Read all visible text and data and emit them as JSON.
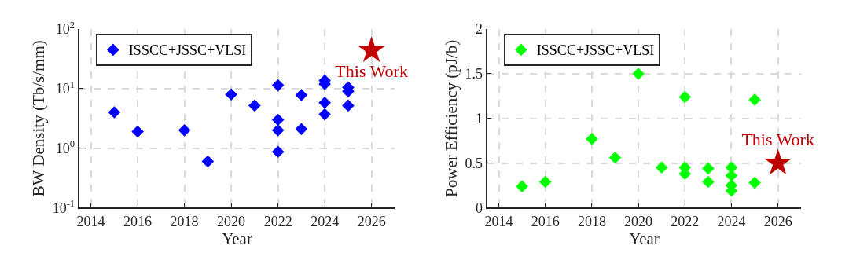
{
  "chart_data": [
    {
      "type": "scatter",
      "xlabel": "Year",
      "ylabel": "BW Density (Tb/s/mm)",
      "log": "y",
      "grid": true,
      "legend": "top left",
      "marker": "diamond",
      "xlim": [
        2013.5,
        2027
      ],
      "xticks": [
        2014,
        2016,
        2018,
        2020,
        2022,
        2024,
        2026
      ],
      "ylim": [
        0.1,
        100
      ],
      "yticks": [
        {
          "value": 0.1,
          "label": "10$^{-1}$"
        },
        {
          "value": 1,
          "label": "10$^{0}$"
        },
        {
          "value": 10,
          "label": "10$^{1}$"
        },
        {
          "value": 100,
          "label": "10$^{2}$"
        }
      ],
      "series": [
        {
          "name": "ISSCC+JSSC+VLSI",
          "color": "#0000ff",
          "x": [
            2015,
            2016,
            2018,
            2019,
            2020,
            2021,
            2022,
            2022,
            2022,
            2022,
            2023,
            2023,
            2024,
            2024,
            2024,
            2024,
            2025,
            2025,
            2025
          ],
          "values": [
            4.0,
            1.9,
            2.0,
            0.6,
            8,
            5.2,
            11.4,
            3.0,
            2.0,
            0.87,
            7.8,
            2.1,
            13.7,
            12,
            5.8,
            3.7,
            10.5,
            9.0,
            5.2
          ]
        },
        {
          "name": "This Work",
          "color": "#c00000",
          "marker": "star",
          "x": [
            2026
          ],
          "values": [
            44
          ]
        }
      ]
    },
    {
      "type": "scatter",
      "xlabel": "Year",
      "ylabel": "Power Efficiency (pJ/b)",
      "grid": true,
      "legend": "top left",
      "marker": "diamond",
      "xlim": [
        2013.5,
        2027
      ],
      "xticks": [
        2014,
        2016,
        2018,
        2020,
        2022,
        2024,
        2026
      ],
      "ylim": [
        0,
        2
      ],
      "yticks": [
        0,
        0.5,
        1,
        1.5,
        2
      ],
      "series": [
        {
          "name": "ISSCC+JSSC+VLSI",
          "color": "#00ff00",
          "x": [
            2015,
            2016,
            2018,
            2019,
            2020,
            2021,
            2022,
            2022,
            2022,
            2023,
            2023,
            2024,
            2024,
            2024,
            2024,
            2025,
            2025
          ],
          "values": [
            0.24,
            0.29,
            0.77,
            0.56,
            1.5,
            0.45,
            1.24,
            0.45,
            0.38,
            0.44,
            0.29,
            0.45,
            0.36,
            0.25,
            0.19,
            1.21,
            0.28
          ]
        },
        {
          "name": "This Work",
          "color": "#c00000",
          "marker": "star",
          "x": [
            2026
          ],
          "values": [
            0.5
          ]
        }
      ]
    }
  ]
}
